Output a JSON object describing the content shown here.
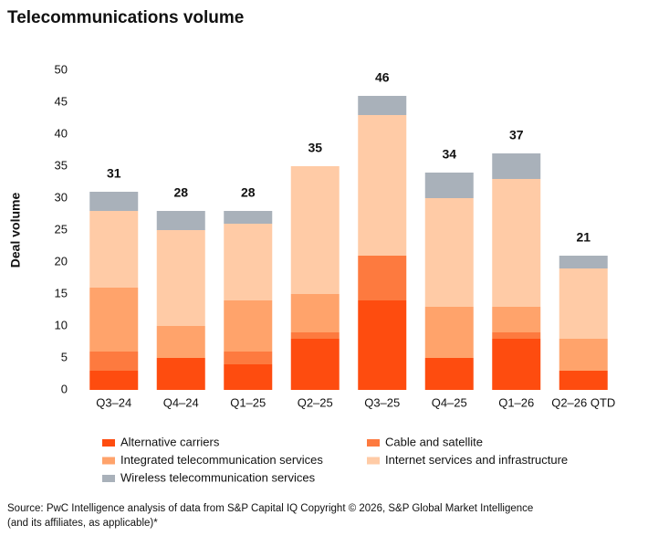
{
  "chart_data": {
    "type": "stacked_bar",
    "title": "Telecommunications volume",
    "y_label": "Deal volume",
    "categories": [
      "Q3–24",
      "Q4–24",
      "Q1–25",
      "Q2–25",
      "Q3–25",
      "Q4–25",
      "Q1–26",
      "Q2–26 QTD"
    ],
    "series": [
      {
        "name": "Alternative carriers",
        "color": "#fe4c0f",
        "values": [
          3,
          5,
          4,
          8,
          14,
          5,
          8,
          3
        ]
      },
      {
        "name": "Cable and satellite",
        "color": "#fd7a3f",
        "values": [
          3,
          0,
          2,
          1,
          7,
          0,
          1,
          0
        ]
      },
      {
        "name": "Integrated telecommunication services",
        "color": "#ffa36b",
        "values": [
          10,
          5,
          8,
          6,
          0,
          8,
          4,
          5
        ]
      },
      {
        "name": "Internet services and infrastructure",
        "color": "#ffcba6",
        "values": [
          12,
          15,
          12,
          20,
          22,
          17,
          20,
          11
        ]
      },
      {
        "name": "Wireless telecommunication services",
        "color": "#a9b1ba",
        "values": [
          3,
          3,
          2,
          0,
          3,
          4,
          4,
          2
        ]
      }
    ],
    "totals": [
      31,
      28,
      28,
      35,
      46,
      34,
      37,
      21
    ],
    "ylim": [
      0,
      50
    ],
    "yticks": [
      0,
      5,
      10,
      15,
      20,
      25,
      30,
      35,
      40,
      45,
      50
    ],
    "grid": false,
    "source": [
      "Source: PwC Intelligence analysis of data from S&P Capital IQ Copyright © 2026, S&P Global Market Intelligence",
      "(and its affiliates, as applicable)*"
    ]
  }
}
